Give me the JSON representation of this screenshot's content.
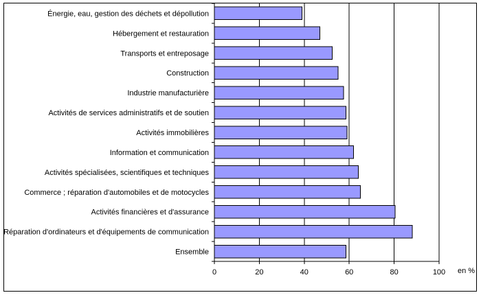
{
  "chart_data": {
    "type": "bar",
    "orientation": "horizontal",
    "categories": [
      "Énergie, eau, gestion des déchets et dépollution",
      "Hébergement et restauration",
      "Transports et entreposage",
      "Construction",
      "Industrie manufacturière",
      "Activités de services administratifs et de soutien",
      "Activités immobilières",
      "Information et communication",
      "Activités spécialisées, scientifiques et techniques",
      "Commerce ; réparation d'automobiles et de motocycles",
      "Activités financières et d'assurance",
      "Réparation d'ordinateurs et d'équipements de communication",
      "Ensemble"
    ],
    "values": [
      39,
      47,
      52.5,
      55,
      57.5,
      58.5,
      59,
      62,
      64,
      65,
      80.5,
      88,
      58.5
    ],
    "xlim": [
      0,
      100
    ],
    "xticks": [
      0,
      20,
      40,
      60,
      80,
      100
    ],
    "xlabel": "en %",
    "ylabel": "",
    "title": "",
    "grid": "vertical",
    "bar_color": "#9999ff",
    "bar_edge_color": "#000000"
  }
}
